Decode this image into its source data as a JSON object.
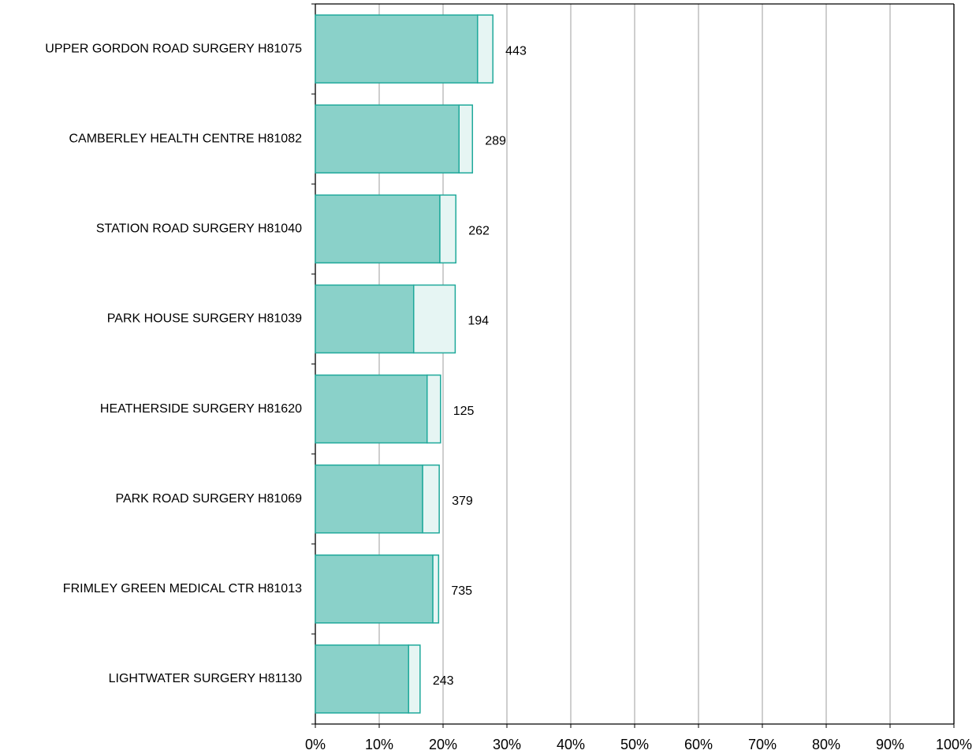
{
  "chart_data": {
    "type": "stacked_bar_horizontal",
    "categories": [
      "UPPER GORDON ROAD SURGERY H81075",
      "CAMBERLEY HEALTH CENTRE H81082",
      "STATION ROAD SURGERY H81040",
      "PARK HOUSE SURGERY H81039",
      "HEATHERSIDE SURGERY H81620",
      "PARK ROAD SURGERY H81069",
      "FRIMLEY GREEN MEDICAL CTR H81013",
      "LIGHTWATER SURGERY H81130"
    ],
    "series": [
      {
        "color": "#8ad1c9",
        "values": [
          25.4,
          22.5,
          19.5,
          15.4,
          17.5,
          16.8,
          18.4,
          14.6
        ]
      },
      {
        "color": "#e6f5f3",
        "values": [
          2.4,
          2.1,
          2.5,
          6.5,
          2.1,
          2.6,
          0.9,
          1.8
        ]
      }
    ],
    "annotations": [
      443,
      289,
      262,
      194,
      125,
      379,
      735,
      243
    ],
    "edge_color": "#1fa99b",
    "xlim": [
      0,
      100
    ],
    "xticks": [
      {
        "value": 0,
        "label": "0%"
      },
      {
        "value": 10,
        "label": "10%"
      },
      {
        "value": 20,
        "label": "20%"
      },
      {
        "value": 30,
        "label": "30%"
      },
      {
        "value": 40,
        "label": "40%"
      },
      {
        "value": 50,
        "label": "50%"
      },
      {
        "value": 60,
        "label": "60%"
      },
      {
        "value": 70,
        "label": "70%"
      },
      {
        "value": 80,
        "label": "80%"
      },
      {
        "value": 90,
        "label": "90%"
      },
      {
        "value": 100,
        "label": "100%"
      }
    ],
    "grid": true
  }
}
